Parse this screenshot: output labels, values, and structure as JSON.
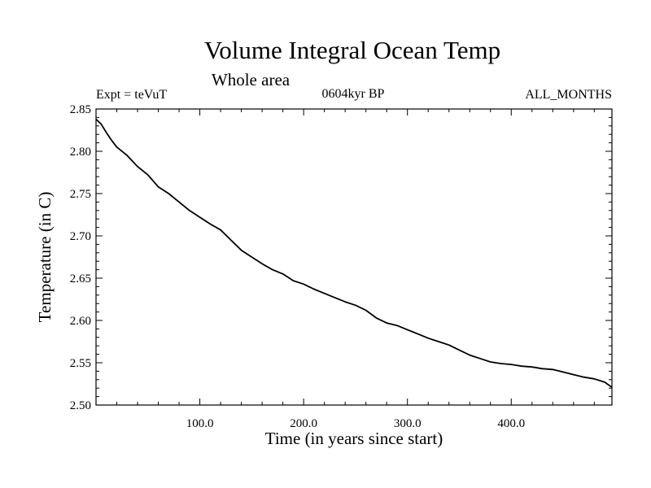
{
  "chart_data": {
    "type": "line",
    "title": "Volume Integral Ocean Temp",
    "subtitle": "Whole area",
    "annotations": {
      "left": "Expt = teVuT",
      "center": "0604kyr BP",
      "right": "ALL_MONTHS"
    },
    "xlabel": "Time (in years since start)",
    "ylabel": "Temperature (in C)",
    "xlim": [
      0,
      497
    ],
    "ylim": [
      2.5,
      2.85
    ],
    "xticks": [
      100,
      200,
      300,
      400
    ],
    "xtick_labels": [
      "100.0",
      "200.0",
      "300.0",
      "400.0"
    ],
    "yticks": [
      2.5,
      2.55,
      2.6,
      2.65,
      2.7,
      2.75,
      2.8,
      2.85
    ],
    "ytick_labels": [
      "2.50",
      "2.55",
      "2.60",
      "2.65",
      "2.70",
      "2.75",
      "2.80",
      "2.85"
    ],
    "grid": false,
    "line_color": "#000000",
    "series": [
      {
        "x": [
          0,
          5,
          10,
          15,
          20,
          30,
          40,
          50,
          60,
          70,
          80,
          90,
          100,
          110,
          120,
          130,
          140,
          150,
          160,
          170,
          180,
          190,
          200,
          210,
          220,
          230,
          240,
          250,
          260,
          270,
          280,
          290,
          300,
          310,
          320,
          330,
          340,
          350,
          360,
          370,
          380,
          390,
          400,
          410,
          420,
          430,
          440,
          450,
          460,
          470,
          480,
          490,
          497
        ],
        "values": [
          2.838,
          2.832,
          2.822,
          2.813,
          2.805,
          2.795,
          2.782,
          2.772,
          2.758,
          2.75,
          2.74,
          2.73,
          2.722,
          2.714,
          2.707,
          2.695,
          2.683,
          2.675,
          2.667,
          2.66,
          2.655,
          2.647,
          2.643,
          2.637,
          2.632,
          2.627,
          2.622,
          2.618,
          2.612,
          2.603,
          2.597,
          2.594,
          2.589,
          2.584,
          2.579,
          2.575,
          2.571,
          2.565,
          2.559,
          2.555,
          2.551,
          2.549,
          2.548,
          2.546,
          2.545,
          2.543,
          2.542,
          2.539,
          2.536,
          2.533,
          2.531,
          2.527,
          2.521
        ]
      }
    ]
  }
}
